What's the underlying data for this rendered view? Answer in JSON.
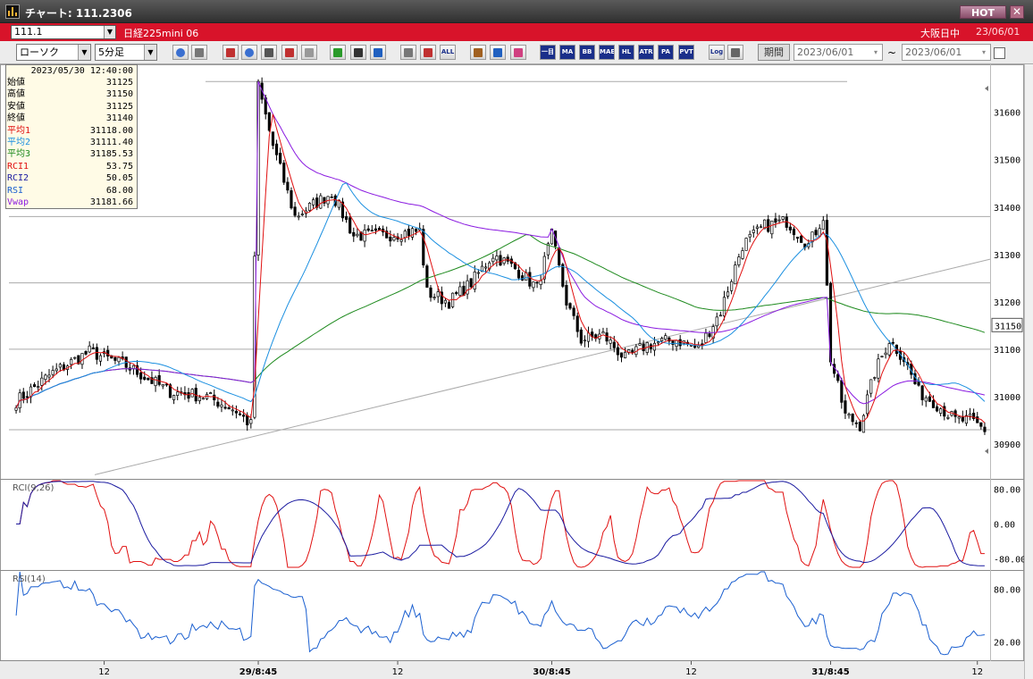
{
  "window": {
    "title": "チャート: 111.2306",
    "badge": "HOT",
    "close_label": "✕"
  },
  "symbol_bar": {
    "symbol_code": "111.1",
    "symbol_name": "日経225mini 06",
    "session": "大阪日中",
    "date": "23/06/01"
  },
  "toolbar": {
    "chart_type": "ローソク",
    "interval": "5分足",
    "buttons": [
      "zoom",
      "split",
      "candle",
      "magnify",
      "bars",
      "swap",
      "info",
      "pen",
      "cursor",
      "undo",
      "multi",
      "cross",
      "all",
      "gear",
      "wrench",
      "palette",
      "ichimoku",
      "ma",
      "bb",
      "mae",
      "hl",
      "atr",
      "para",
      "pvt",
      "log",
      "save"
    ],
    "button_labels": {
      "all": "ALL",
      "ichimoku": "一目",
      "ma": "MA",
      "bb": "BB",
      "mae": "MAE",
      "hl": "HL",
      "atr": "ATR",
      "para": "PA RA",
      "pvt": "PVT",
      "log": "Log"
    },
    "period_label": "期間",
    "date_from": "2023/06/01",
    "date_to": "2023/06/01",
    "range_separator": "~"
  },
  "info_panel": {
    "timestamp": "2023/05/30  12:40:00",
    "rows": [
      {
        "label": "始値",
        "value": "31125",
        "color": "#000000"
      },
      {
        "label": "高値",
        "value": "31150",
        "color": "#000000"
      },
      {
        "label": "安値",
        "value": "31125",
        "color": "#000000"
      },
      {
        "label": "終値",
        "value": "31140",
        "color": "#000000"
      },
      {
        "label": "平均1",
        "value": "31118.00",
        "color": "#e01010"
      },
      {
        "label": "平均2",
        "value": "31111.40",
        "color": "#1a8fe0"
      },
      {
        "label": "平均3",
        "value": "31185.53",
        "color": "#1e8a1e"
      },
      {
        "label": "RCI1",
        "value": "53.75",
        "color": "#e01010"
      },
      {
        "label": "RCI2",
        "value": "50.05",
        "color": "#1a1aa0"
      },
      {
        "label": "RSI",
        "value": "68.00",
        "color": "#1a5fd0"
      },
      {
        "label": "Vwap",
        "value": "31181.66",
        "color": "#8a1ae0"
      }
    ]
  },
  "chart_data": [
    {
      "type": "candlestick",
      "title": "",
      "ylim": [
        30830,
        31690
      ],
      "yticks": [
        30900,
        31000,
        31100,
        31200,
        31300,
        31400,
        31500,
        31600
      ],
      "x_tick_labels": [
        "12",
        "29/8:45",
        "12",
        "30/8:45",
        "12",
        "31/8:45",
        "12"
      ],
      "current_price_label": "31150",
      "current_price": 31150,
      "session_anchors": [
        {
          "bar": 0,
          "price": 30990
        },
        {
          "bar": 10,
          "price": 31050
        },
        {
          "bar": 20,
          "price": 31095
        },
        {
          "bar": 30,
          "price": 31065
        },
        {
          "bar": 42,
          "price": 31010
        },
        {
          "bar": 52,
          "price": 31000
        },
        {
          "bar": 60,
          "price": 30970
        },
        {
          "bar": 64,
          "price": 30940
        },
        {
          "bar": 66,
          "price": 31655
        },
        {
          "bar": 70,
          "price": 31530
        },
        {
          "bar": 76,
          "price": 31380
        },
        {
          "bar": 86,
          "price": 31430
        },
        {
          "bar": 92,
          "price": 31340
        },
        {
          "bar": 100,
          "price": 31340
        },
        {
          "bar": 110,
          "price": 31350
        },
        {
          "bar": 112,
          "price": 31220
        },
        {
          "bar": 118,
          "price": 31200
        },
        {
          "bar": 124,
          "price": 31240
        },
        {
          "bar": 130,
          "price": 31300
        },
        {
          "bar": 136,
          "price": 31270
        },
        {
          "bar": 142,
          "price": 31230
        },
        {
          "bar": 146,
          "price": 31340
        },
        {
          "bar": 150,
          "price": 31200
        },
        {
          "bar": 154,
          "price": 31120
        },
        {
          "bar": 160,
          "price": 31130
        },
        {
          "bar": 166,
          "price": 31080
        },
        {
          "bar": 172,
          "price": 31110
        },
        {
          "bar": 180,
          "price": 31120
        },
        {
          "bar": 186,
          "price": 31100
        },
        {
          "bar": 192,
          "price": 31180
        },
        {
          "bar": 198,
          "price": 31320
        },
        {
          "bar": 204,
          "price": 31360
        },
        {
          "bar": 210,
          "price": 31370
        },
        {
          "bar": 216,
          "price": 31320
        },
        {
          "bar": 220,
          "price": 31380
        },
        {
          "bar": 222,
          "price": 31080
        },
        {
          "bar": 226,
          "price": 30960
        },
        {
          "bar": 230,
          "price": 30940
        },
        {
          "bar": 234,
          "price": 31050
        },
        {
          "bar": 238,
          "price": 31120
        },
        {
          "bar": 242,
          "price": 31080
        },
        {
          "bar": 246,
          "price": 31010
        },
        {
          "bar": 250,
          "price": 30990
        },
        {
          "bar": 256,
          "price": 30950
        },
        {
          "bar": 260,
          "price": 30950
        },
        {
          "bar": 264,
          "price": 30930
        }
      ],
      "series": [
        {
          "name": "平均1",
          "color": "#e01010"
        },
        {
          "name": "平均2",
          "color": "#1a8fe0"
        },
        {
          "name": "平均3",
          "color": "#1e8a1e"
        },
        {
          "name": "Vwap",
          "color": "#8a1ae0"
        }
      ]
    },
    {
      "type": "line",
      "title": "RCI(9,26)",
      "ylim": [
        -100,
        100
      ],
      "yticks": [
        80,
        0,
        -80
      ],
      "ytick_labels": [
        "80.00",
        "0.00",
        "-80.00"
      ],
      "series": [
        {
          "name": "RCI1",
          "color": "#e01010"
        },
        {
          "name": "RCI2",
          "color": "#1a1aa0"
        }
      ]
    },
    {
      "type": "line",
      "title": "RSI(14)",
      "ylim": [
        0,
        100
      ],
      "yticks": [
        80,
        20
      ],
      "ytick_labels": [
        "80.00",
        "20.00"
      ],
      "series": [
        {
          "name": "RSI",
          "color": "#1a5fd0"
        }
      ]
    }
  ]
}
